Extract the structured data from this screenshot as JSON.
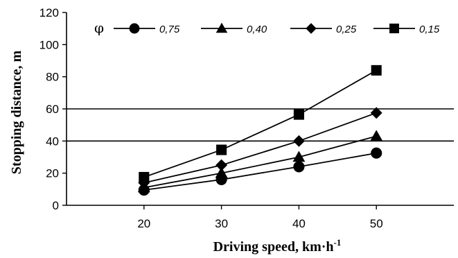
{
  "chart_data": {
    "type": "line",
    "x": [
      20,
      30,
      40,
      50
    ],
    "xlabel": "Driving speed, km·h",
    "xlabel_sup": "-1",
    "ylabel": "Stopping distance, m",
    "xlim": [
      10,
      60
    ],
    "ylim": [
      0,
      120
    ],
    "xticks": [
      "20",
      "30",
      "40",
      "50"
    ],
    "yticks": [
      "0",
      "20",
      "40",
      "60",
      "80",
      "100",
      "120"
    ],
    "ytick_values": [
      0,
      20,
      40,
      60,
      80,
      100,
      120
    ],
    "gridlines_y": [
      40,
      60
    ],
    "legend_title": "φ",
    "legend_position": "top",
    "series": [
      {
        "name": "0,75",
        "marker": "circle",
        "values": [
          9.5,
          16,
          24,
          32.5
        ]
      },
      {
        "name": "0,40",
        "marker": "triangle",
        "values": [
          11,
          20,
          30,
          43
        ]
      },
      {
        "name": "0,25",
        "marker": "diamond",
        "values": [
          14,
          25,
          40,
          57.5
        ]
      },
      {
        "name": "0,15",
        "marker": "square",
        "values": [
          17.5,
          34.5,
          56.5,
          84
        ]
      }
    ],
    "line_color": "#000000"
  }
}
